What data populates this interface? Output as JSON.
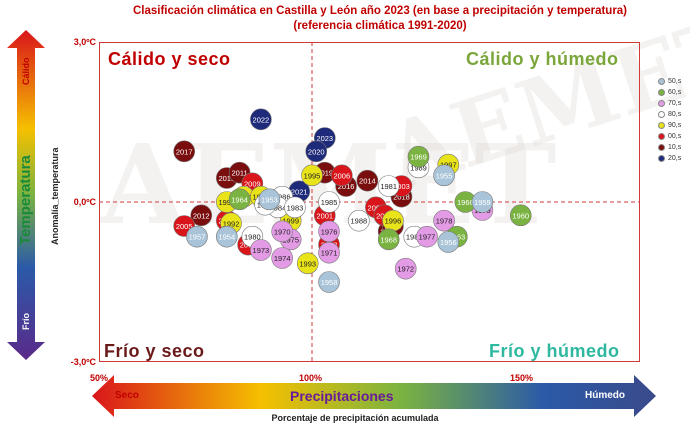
{
  "title_line1": "Clasificación climática en Castilla y León año 2023 (en base a precipitación y temperatura)",
  "title_line2": "(referencia climática 1991-2020)",
  "watermark": "AEMET",
  "quadrants": {
    "top_left": "Cálido y seco",
    "top_right": "Cálido y húmedo",
    "bottom_left": "Frío y seco",
    "bottom_right": "Frío y húmedo"
  },
  "temperature_bar": {
    "title": "Temperatura",
    "hot": "Cálido",
    "cold": "Frío"
  },
  "precip_bar": {
    "title": "Precipitaciones",
    "dry": "Seco",
    "wet": "Húmedo"
  },
  "colors": {
    "top_left": "#c00000",
    "top_right": "#7aa63a",
    "bottom_left": "#6b1a1a",
    "bottom_right": "#2fb8a0"
  },
  "legend": [
    {
      "label": "50,s",
      "color": "#a9c4d8"
    },
    {
      "label": "60,s",
      "color": "#7ab341"
    },
    {
      "label": "70,s",
      "color": "#e49be6"
    },
    {
      "label": "80,s",
      "color": "#ffffff"
    },
    {
      "label": "90,s",
      "color": "#e9e31a"
    },
    {
      "label": "00,s",
      "color": "#d9151b"
    },
    {
      "label": "10,s",
      "color": "#7a0e0e"
    },
    {
      "label": "20,s",
      "color": "#1e2a7a"
    }
  ],
  "chart_data": {
    "type": "scatter",
    "title": "Clasificación climática en Castilla y León año 2023 (en base a precipitación y temperatura)",
    "subtitle": "(referencia climática 1991-2020)",
    "xlabel": "Porcentaje de precipitación acumulada",
    "ylabel": "Anomalía_temperatura",
    "xlim": [
      50,
      155
    ],
    "ylim": [
      -3.0,
      3.0
    ],
    "xticks": [
      "50%",
      "100%",
      "150%"
    ],
    "yticks": [
      "3,0ºC",
      "0,0ºC",
      "-3,0ºC"
    ],
    "reference_lines": {
      "x": 100,
      "y": 0
    },
    "grid": false,
    "legend_position": "right",
    "points": [
      {
        "label": "2023",
        "x": 103,
        "y": 1.2,
        "decade": "20,s"
      },
      {
        "label": "2022",
        "x": 88,
        "y": 1.55,
        "decade": "20,s"
      },
      {
        "label": "2021",
        "x": 97,
        "y": 0.2,
        "decade": "20,s"
      },
      {
        "label": "2020",
        "x": 101,
        "y": 0.95,
        "decade": "20,s"
      },
      {
        "label": "2017",
        "x": 70,
        "y": 0.95,
        "decade": "10,s"
      },
      {
        "label": "2019",
        "x": 103,
        "y": 0.55,
        "decade": "10,s"
      },
      {
        "label": "2016",
        "x": 108,
        "y": 0.3,
        "decade": "10,s"
      },
      {
        "label": "2015",
        "x": 80,
        "y": 0.45,
        "decade": "10,s"
      },
      {
        "label": "2014",
        "x": 113,
        "y": 0.4,
        "decade": "10,s"
      },
      {
        "label": "2011",
        "x": 83,
        "y": 0.55,
        "decade": "10,s"
      },
      {
        "label": "2012",
        "x": 74,
        "y": -0.25,
        "decade": "10,s"
      },
      {
        "label": "2018",
        "x": 121,
        "y": 0.1,
        "decade": "10,s"
      },
      {
        "label": "2013",
        "x": 118,
        "y": -0.55,
        "decade": "10,s"
      },
      {
        "label": "2010",
        "x": 119,
        "y": -0.45,
        "decade": "10,s"
      },
      {
        "label": "2009",
        "x": 86,
        "y": 0.35,
        "decade": "00,s"
      },
      {
        "label": "2006",
        "x": 107,
        "y": 0.5,
        "decade": "00,s"
      },
      {
        "label": "2003",
        "x": 121,
        "y": 0.3,
        "decade": "00,s"
      },
      {
        "label": "2005",
        "x": 70,
        "y": -0.45,
        "decade": "00,s"
      },
      {
        "label": "2004",
        "x": 80,
        "y": -0.35,
        "decade": "00,s"
      },
      {
        "label": "2001",
        "x": 103,
        "y": -0.25,
        "decade": "00,s"
      },
      {
        "label": "2002",
        "x": 115,
        "y": -0.1,
        "decade": "00,s"
      },
      {
        "label": "2000",
        "x": 117,
        "y": -0.25,
        "decade": "00,s"
      },
      {
        "label": "2008",
        "x": 104,
        "y": -0.8,
        "decade": "00,s"
      },
      {
        "label": "2007",
        "x": 85,
        "y": -0.8,
        "decade": "00,s"
      },
      {
        "label": "1998",
        "x": 80,
        "y": 0.0,
        "decade": "90,s"
      },
      {
        "label": "1999",
        "x": 95,
        "y": -0.35,
        "decade": "90,s"
      },
      {
        "label": "1997",
        "x": 132,
        "y": 0.7,
        "decade": "90,s"
      },
      {
        "label": "1996",
        "x": 119,
        "y": -0.35,
        "decade": "90,s"
      },
      {
        "label": "1995",
        "x": 100,
        "y": 0.5,
        "decade": "90,s"
      },
      {
        "label": "1994",
        "x": 84,
        "y": 0.1,
        "decade": "90,s"
      },
      {
        "label": "1993",
        "x": 99,
        "y": -1.15,
        "decade": "90,s"
      },
      {
        "label": "1992",
        "x": 81,
        "y": -0.4,
        "decade": "90,s"
      },
      {
        "label": "1991",
        "x": 93,
        "y": 0.05,
        "decade": "90,s"
      },
      {
        "label": "1990",
        "x": 88,
        "y": 0.1,
        "decade": "90,s"
      },
      {
        "label": "1989",
        "x": 125,
        "y": 0.65,
        "decade": "80,s"
      },
      {
        "label": "1988",
        "x": 111,
        "y": -0.35,
        "decade": "80,s"
      },
      {
        "label": "1987",
        "x": 124,
        "y": -0.65,
        "decade": "80,s"
      },
      {
        "label": "1986",
        "x": 93,
        "y": 0.1,
        "decade": "80,s"
      },
      {
        "label": "1985",
        "x": 104,
        "y": 0.0,
        "decade": "80,s"
      },
      {
        "label": "1984",
        "x": 92,
        "y": -0.1,
        "decade": "80,s"
      },
      {
        "label": "1983",
        "x": 96,
        "y": -0.1,
        "decade": "80,s"
      },
      {
        "label": "1982",
        "x": 89,
        "y": -0.05,
        "decade": "80,s"
      },
      {
        "label": "1981",
        "x": 118,
        "y": 0.3,
        "decade": "80,s"
      },
      {
        "label": "1980",
        "x": 86,
        "y": -0.65,
        "decade": "80,s"
      },
      {
        "label": "1979",
        "x": 140,
        "y": -0.15,
        "decade": "70,s"
      },
      {
        "label": "1978",
        "x": 131,
        "y": -0.35,
        "decade": "70,s"
      },
      {
        "label": "1977",
        "x": 127,
        "y": -0.65,
        "decade": "70,s"
      },
      {
        "label": "1976",
        "x": 104,
        "y": -0.55,
        "decade": "70,s"
      },
      {
        "label": "1975",
        "x": 95,
        "y": -0.7,
        "decade": "70,s"
      },
      {
        "label": "1974",
        "x": 93,
        "y": -1.05,
        "decade": "70,s"
      },
      {
        "label": "1973",
        "x": 88,
        "y": -0.9,
        "decade": "70,s"
      },
      {
        "label": "1972",
        "x": 122,
        "y": -1.25,
        "decade": "70,s"
      },
      {
        "label": "1971",
        "x": 104,
        "y": -0.95,
        "decade": "70,s"
      },
      {
        "label": "1970",
        "x": 93,
        "y": -0.55,
        "decade": "70,s"
      },
      {
        "label": "1966",
        "x": 136,
        "y": 0.0,
        "decade": "60,s"
      },
      {
        "label": "1969",
        "x": 125,
        "y": 0.85,
        "decade": "60,s"
      },
      {
        "label": "1960",
        "x": 149,
        "y": -0.25,
        "decade": "60,s"
      },
      {
        "label": "1963",
        "x": 134,
        "y": -0.65,
        "decade": "60,s"
      },
      {
        "label": "1968",
        "x": 118,
        "y": -0.7,
        "decade": "60,s"
      },
      {
        "label": "1964",
        "x": 83,
        "y": 0.05,
        "decade": "60,s"
      },
      {
        "label": "1959",
        "x": 140,
        "y": 0.0,
        "decade": "50,s"
      },
      {
        "label": "1958",
        "x": 104,
        "y": -1.5,
        "decade": "50,s"
      },
      {
        "label": "1957",
        "x": 73,
        "y": -0.65,
        "decade": "50,s"
      },
      {
        "label": "1954",
        "x": 80,
        "y": -0.65,
        "decade": "50,s"
      },
      {
        "label": "1955",
        "x": 131,
        "y": 0.5,
        "decade": "50,s"
      },
      {
        "label": "1956",
        "x": 132,
        "y": -0.75,
        "decade": "50,s"
      },
      {
        "label": "1953",
        "x": 90,
        "y": 0.05,
        "decade": "50,s"
      }
    ]
  }
}
